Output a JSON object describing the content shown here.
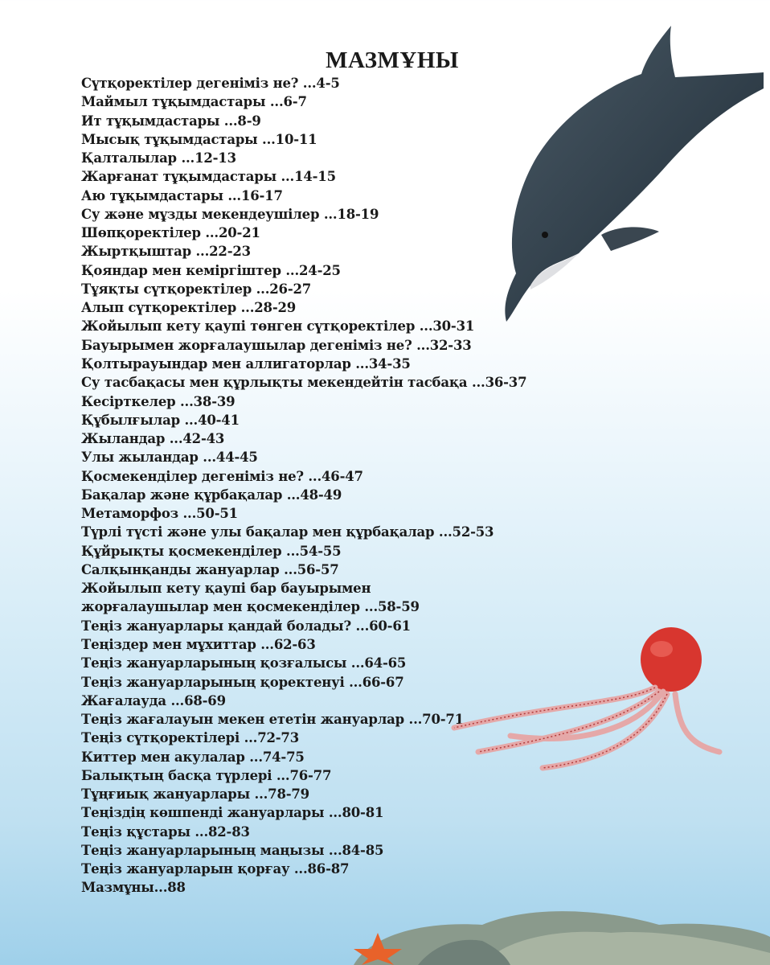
{
  "title": "МАЗМҰНЫ",
  "entries": [
    "Сүтқоректілер дегеніміз не? ...4-5",
    "Маймыл тұқымдастары ...6-7",
    "Ит тұқымдастары ...8-9",
    "Мысық тұқымдастары ...10-11",
    "Қалталылар ...12-13",
    "Жарғанат тұқымдастары ...14-15",
    "Аю тұқымдастары ...16-17",
    "Су және мұзды мекендеушілер ...18-19",
    "Шөпқоректілер ...20-21",
    "Жыртқыштар ...22-23",
    "Қояндар мен кеміргіштер ...24-25",
    "Тұяқты сүтқоректілер ...26-27",
    "Алып сүтқоректілер ...28-29",
    "Жойылып кету қаупі төнген сүтқоректілер ...30-31",
    "Бауырымен жорғалаушылар дегеніміз не? ...32-33",
    "Қолтырауындар мен аллигаторлар ...34-35",
    "Су тасбақасы мен құрлықты мекендейтін тасбақа ...36-37",
    "Кесірткелер ...38-39",
    "Құбылғылар ...40-41",
    "Жыландар ...42-43",
    "Улы жыландар ...44-45",
    "Қосмекенділер дегеніміз не? ...46-47",
    "Бақалар және құрбақалар ...48-49",
    "Метаморфоз ...50-51",
    "Түрлі түсті және улы бақалар мен құрбақалар ...52-53",
    "Құйрықты қосмекенділер ...54-55",
    "Салқынқанды жануарлар ...56-57",
    "Жойылып кету қаупі бар бауырымен",
    "жорғалаушылар мен  қосмекенділер ...58-59",
    "Теңіз жануарлары қандай болады? ...60-61",
    "Теңіздер мен мұхиттар ...62-63",
    "Теңіз жануарларының қозғалысы ...64-65",
    "Теңіз жануарларының қоректенуі ...66-67",
    "Жағалауда ...68-69",
    "Теңіз жағалауын мекен ететін жануарлар ...70-71",
    "Теңіз сүтқоректілері ...72-73",
    "Киттер мен акулалар ...74-75",
    "Балықтың басқа түрлері ...76-77",
    "Тұңғиық жануарлары ...78-79",
    "Теңіздің көшпенді жануарлары ...80-81",
    "Теңіз құстары ...82-83",
    "Теңіз жануарларының маңызы ...84-85",
    "Теңіз жануарларын қорғау ...86-87",
    "Мазмұны...88"
  ],
  "illustrations": [
    "dolphin",
    "octopus",
    "starfish",
    "rocks"
  ]
}
